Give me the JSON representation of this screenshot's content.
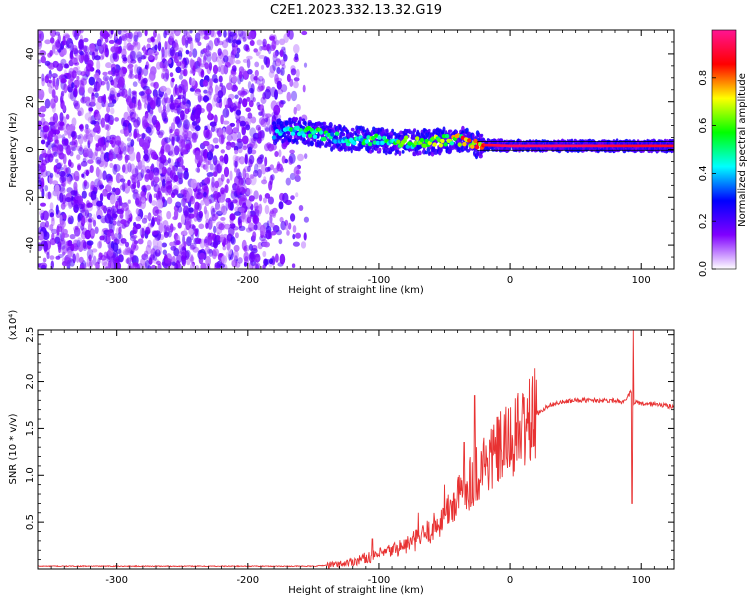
{
  "title": "C2E1.2023.332.13.32.G19",
  "colors": {
    "snr_line": "#e83232",
    "spectrum_core": "#e8343a",
    "spectrum_fill": "#7a00e8"
  },
  "chart_data": [
    {
      "type": "heatmap",
      "xlabel": "Height of straight line (km)",
      "ylabel": "Frequency (Hz)",
      "xlim": [
        -360,
        125
      ],
      "ylim": [
        -50,
        50
      ],
      "x_ticks": [
        -300,
        -200,
        -100,
        0,
        100
      ],
      "x_tick_labels": [
        "-300",
        "-200",
        "-100",
        "0",
        "100"
      ],
      "y_ticks": [
        -40,
        -20,
        0,
        20,
        40
      ],
      "y_tick_labels": [
        "-40",
        "-20",
        "0",
        "20",
        "40"
      ],
      "colorbar": {
        "label": "Normalized spectral amplitude",
        "range": [
          0,
          1
        ],
        "ticks": [
          0.0,
          0.2,
          0.4,
          0.6,
          0.8
        ],
        "tick_labels": [
          "0.0",
          "0.2",
          "0.4",
          "0.6",
          "0.8"
        ],
        "colors": [
          "#ffffff",
          "#8000ff",
          "#0000ff",
          "#00ffff",
          "#00ff00",
          "#ffff00",
          "#ff0000",
          "#ff1493"
        ]
      },
      "noise_region": {
        "x": [
          -360,
          -155
        ],
        "y": [
          -50,
          50
        ]
      },
      "signal_ridge": [
        {
          "x": -180,
          "y": 7,
          "amp": 0.4
        },
        {
          "x": -165,
          "y": 8,
          "amp": 0.55
        },
        {
          "x": -150,
          "y": 7,
          "amp": 0.6
        },
        {
          "x": -135,
          "y": 5,
          "amp": 0.55
        },
        {
          "x": -120,
          "y": 4,
          "amp": 0.55
        },
        {
          "x": -105,
          "y": 4,
          "amp": 0.6
        },
        {
          "x": -90,
          "y": 3,
          "amp": 0.6
        },
        {
          "x": -75,
          "y": 3,
          "amp": 0.65
        },
        {
          "x": -60,
          "y": 3,
          "amp": 0.7
        },
        {
          "x": -45,
          "y": 4,
          "amp": 0.75
        },
        {
          "x": -35,
          "y": 4,
          "amp": 0.85
        },
        {
          "x": -25,
          "y": 2,
          "amp": 0.9
        },
        {
          "x": 0,
          "y": 1.5,
          "amp": 0.95
        },
        {
          "x": 50,
          "y": 1.5,
          "amp": 0.95
        },
        {
          "x": 90,
          "y": 1.5,
          "amp": 0.9
        },
        {
          "x": 125,
          "y": 1.5,
          "amp": 0.9
        }
      ]
    },
    {
      "type": "line",
      "xlabel": "Height of straight line (km)",
      "ylabel": "SNR (10 * v/v)",
      "y_scale_label": "(x10⁴)",
      "xlim": [
        -360,
        125
      ],
      "ylim": [
        0,
        2.55
      ],
      "x_ticks": [
        -300,
        -200,
        -100,
        0,
        100
      ],
      "x_tick_labels": [
        "-300",
        "-200",
        "-100",
        "0",
        "100"
      ],
      "y_ticks": [
        0.5,
        1.0,
        1.5,
        2.0,
        2.5
      ],
      "y_tick_labels": [
        "0.5",
        "1.0",
        "1.5",
        "2.0",
        "2.5"
      ],
      "series": [
        {
          "x": [
            -360,
            -300,
            -250,
            -200,
            -150,
            -130,
            -120,
            -110,
            -100,
            -90,
            -80,
            -70,
            -60,
            -50,
            -40,
            -30,
            -20,
            -10,
            0,
            10,
            20,
            30,
            40,
            50,
            60,
            70,
            80,
            88,
            92,
            94,
            96,
            100,
            110,
            125
          ],
          "y": [
            0.03,
            0.03,
            0.03,
            0.03,
            0.03,
            0.05,
            0.08,
            0.12,
            0.15,
            0.2,
            0.25,
            0.32,
            0.42,
            0.55,
            0.75,
            0.95,
            1.1,
            1.25,
            1.35,
            1.5,
            1.65,
            1.75,
            1.78,
            1.8,
            1.8,
            1.8,
            1.8,
            1.78,
            1.9,
            1.75,
            1.78,
            1.76,
            1.76,
            1.73
          ]
        }
      ],
      "spikes": [
        {
          "x": -105,
          "y": 0.32
        },
        {
          "x": -70,
          "y": 0.6
        },
        {
          "x": -50,
          "y": 0.9
        },
        {
          "x": -35,
          "y": 1.35
        },
        {
          "x": -27,
          "y": 1.85
        },
        {
          "x": -20,
          "y": 1.4
        },
        {
          "x": 93,
          "y": 0.7
        },
        {
          "x": 94,
          "y": 2.55
        }
      ]
    }
  ]
}
